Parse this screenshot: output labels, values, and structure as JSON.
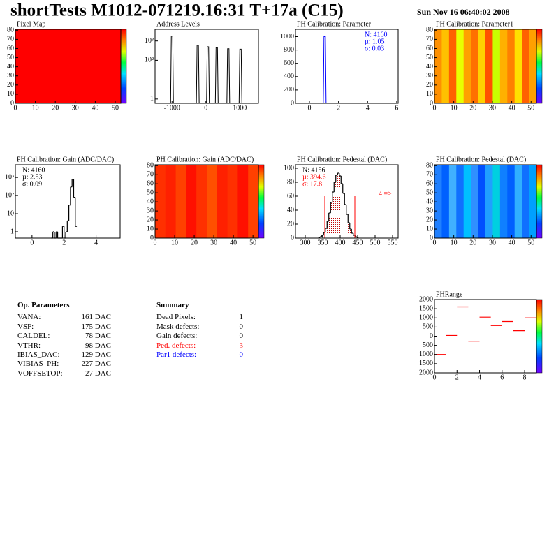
{
  "header": {
    "title": "shortTests M1012-071219.16:31 T+17a (C15)",
    "date": "Sun Nov 16 06:40:02 2008"
  },
  "chart_data": [
    {
      "type": "heatmap",
      "title": "Pixel Map",
      "xlim": [
        0,
        52.8
      ],
      "ylim": [
        0,
        81
      ],
      "xticks": [
        0,
        10,
        20,
        30,
        40,
        50
      ],
      "yticks": [
        0,
        10,
        20,
        30,
        40,
        50,
        60,
        70,
        80
      ],
      "colors": [
        "#ff0000"
      ],
      "colorbar": true
    },
    {
      "type": "spikes",
      "title": "Address Levels",
      "log_y": true,
      "xlim": [
        -1500,
        1550
      ],
      "ylim": [
        0.6,
        4000
      ],
      "xticks": [
        -1000,
        0,
        1000
      ],
      "yticks": [
        1,
        {
          "value": 100,
          "label": "10²"
        },
        {
          "value": 1000,
          "label": "10³"
        }
      ],
      "x": [
        -1000,
        -240,
        60,
        320,
        660,
        1020
      ],
      "values": [
        1800,
        600,
        500,
        450,
        400,
        380
      ],
      "color": "#000000"
    },
    {
      "type": "spikes",
      "title": "PH Calibration: Parameter",
      "xlim": [
        -0.96,
        6.1
      ],
      "ylim": [
        0,
        1110
      ],
      "xticks": [
        0,
        2,
        4,
        6
      ],
      "yticks": [
        0,
        200,
        400,
        600,
        800,
        1000
      ],
      "x": [
        1.05
      ],
      "values": [
        1000
      ],
      "color": "#0000ff",
      "stats": [
        "N: 4160",
        "µ: 1.05",
        "σ: 0.03"
      ],
      "stats_colors": [
        "#0000ff",
        "#0000ff",
        "#0000ff"
      ]
    },
    {
      "type": "heatmap",
      "title": "PH Calibration: Parameter1",
      "xlim": [
        0,
        52.8
      ],
      "ylim": [
        0,
        81
      ],
      "xticks": [
        0,
        10,
        20,
        30,
        40,
        50
      ],
      "yticks": [
        0,
        10,
        20,
        30,
        40,
        50,
        60,
        70,
        80
      ],
      "colors": [
        "#ff9000",
        "#ffc000",
        "#ff6000",
        "#e8ff00",
        "#ffa000",
        "#ff7000",
        "#ffd000",
        "#ff5000",
        "#c8ff00",
        "#ffb000",
        "#ff8000",
        "#ffe000",
        "#ff6000",
        "#ffa000"
      ],
      "colorbar": true
    },
    {
      "type": "histogram",
      "title": "PH Calibration: Gain (ADC/DAC)",
      "log_y": true,
      "xlim": [
        -1.04,
        5.5
      ],
      "ylim": [
        0.45,
        5000
      ],
      "xticks": [
        0,
        2,
        4
      ],
      "yticks": [
        1,
        10,
        {
          "value": 100,
          "label": "10²"
        },
        {
          "value": 1000,
          "label": "10³"
        }
      ],
      "bins": [
        1.2,
        1.3,
        1.4,
        1.5,
        1.6,
        1.7,
        1.8,
        1.9,
        2.0,
        2.1,
        2.2,
        2.3,
        2.4,
        2.5,
        2.6,
        2.7,
        2.8
      ],
      "values": [
        0,
        1,
        0,
        1,
        0,
        0,
        0,
        2,
        0,
        1,
        4,
        30,
        300,
        800,
        80,
        2
      ],
      "color": "#000000",
      "stats": [
        "N: 4160",
        "µ: 2.53",
        "σ: 0.09"
      ],
      "stats_colors": [
        "#000000",
        "#000000",
        "#000000"
      ]
    },
    {
      "type": "heatmap",
      "title": "PH Calibration: Gain (ADC/DAC)",
      "xlim": [
        0,
        52.8
      ],
      "ylim": [
        0,
        81
      ],
      "xticks": [
        0,
        10,
        20,
        30,
        40,
        50
      ],
      "yticks": [
        0,
        10,
        20,
        30,
        40,
        50,
        60,
        70,
        80
      ],
      "colors": [
        "#ff3000",
        "#ff2000",
        "#ff4000",
        "#ff1000",
        "#ff3000",
        "#ff5000",
        "#ff2000",
        "#ff3000",
        "#ff1000",
        "#ff4000"
      ],
      "colorbar": true
    },
    {
      "type": "histogram",
      "title": "PH Calibration: Pedestal (DAC)",
      "xlim": [
        272,
        566
      ],
      "ylim": [
        0,
        105
      ],
      "xticks": [
        300,
        350,
        400,
        450,
        500,
        550
      ],
      "yticks": [
        0,
        20,
        40,
        60,
        80,
        100
      ],
      "bins": [
        337.5,
        342.5,
        347.5,
        352.5,
        357.5,
        362.5,
        367.5,
        372.5,
        377.5,
        382.5,
        387.5,
        392.5,
        397.5,
        402.5,
        407.5,
        412.5,
        417.5,
        422.5,
        427.5,
        432.5,
        437.5,
        442.5,
        447.5,
        452.5
      ],
      "values": [
        1,
        2,
        4,
        8,
        14,
        24,
        36,
        51,
        66,
        80,
        90,
        93,
        89,
        78,
        64,
        48,
        34,
        22,
        13,
        7,
        4,
        2,
        1
      ],
      "color": "#000000",
      "fill": "#e0a0a0",
      "cut_lines": [
        356,
        442
      ],
      "cut_value": 60,
      "cut_color": "#ff0000",
      "stats": [
        "N: 4156",
        "µ: 394.6",
        "σ: 17.8"
      ],
      "stats_colors": [
        "#000000",
        "#ff0000",
        "#ff0000"
      ],
      "annotation": "4 =>",
      "annotation_color": "#ff0000"
    },
    {
      "type": "heatmap",
      "title": "PH Calibration: Pedestal (DAC)",
      "xlim": [
        0,
        52.8
      ],
      "ylim": [
        0,
        81
      ],
      "xticks": [
        0,
        10,
        20,
        30,
        40,
        50
      ],
      "yticks": [
        0,
        10,
        20,
        30,
        40,
        50,
        60,
        70,
        80
      ],
      "colors": [
        "#2080ff",
        "#0060ff",
        "#40b0ff",
        "#1070ff",
        "#00c0ff",
        "#3090ff",
        "#0050ff",
        "#20a0ff",
        "#00d0e0",
        "#1080ff",
        "#0060ff",
        "#30b0ff",
        "#1070ff",
        "#00a0ff"
      ],
      "colorbar": true
    },
    {
      "type": "segments",
      "title": "PHRange",
      "xlim": [
        0,
        9.05
      ],
      "ylim": [
        -2000,
        2000
      ],
      "xticks": [
        0,
        2,
        4,
        6,
        8
      ],
      "yticks": [
        {
          "value": -2000,
          "label": "2000"
        },
        {
          "value": -1500,
          "label": "1500"
        },
        {
          "value": -1000,
          "label": "1000"
        },
        {
          "value": -500,
          "label": "500"
        },
        0,
        500,
        1000,
        1500,
        2000
      ],
      "x": [
        0,
        1,
        2,
        3,
        4,
        5,
        6,
        7,
        8
      ],
      "values": [
        -1000,
        40,
        1600,
        -270,
        1040,
        580,
        800,
        300,
        1000
      ],
      "color": "#ff0000",
      "colorbar": true
    }
  ],
  "op_parameters": {
    "title": "Op. Parameters",
    "rows": [
      [
        "VANA:",
        "161 DAC"
      ],
      [
        "VSF:",
        "175 DAC"
      ],
      [
        "CALDEL:",
        "78 DAC"
      ],
      [
        "VTHR:",
        "98 DAC"
      ],
      [
        "IBIAS_DAC:",
        "129 DAC"
      ],
      [
        "VIBIAS_PH:",
        "227 DAC"
      ],
      [
        "VOFFSETOP:",
        "27 DAC"
      ]
    ]
  },
  "summary": {
    "title": "Summary",
    "rows": [
      {
        "label": "Dead Pixels:",
        "value": 1,
        "color": "#000000"
      },
      {
        "label": "Mask defects:",
        "value": 0,
        "color": "#000000"
      },
      {
        "label": "Gain defects:",
        "value": 0,
        "color": "#000000"
      },
      {
        "label": "Ped. defects:",
        "value": 3,
        "color": "#ff0000"
      },
      {
        "label": "Par1 defects:",
        "value": 0,
        "color": "#0000ff"
      }
    ]
  }
}
